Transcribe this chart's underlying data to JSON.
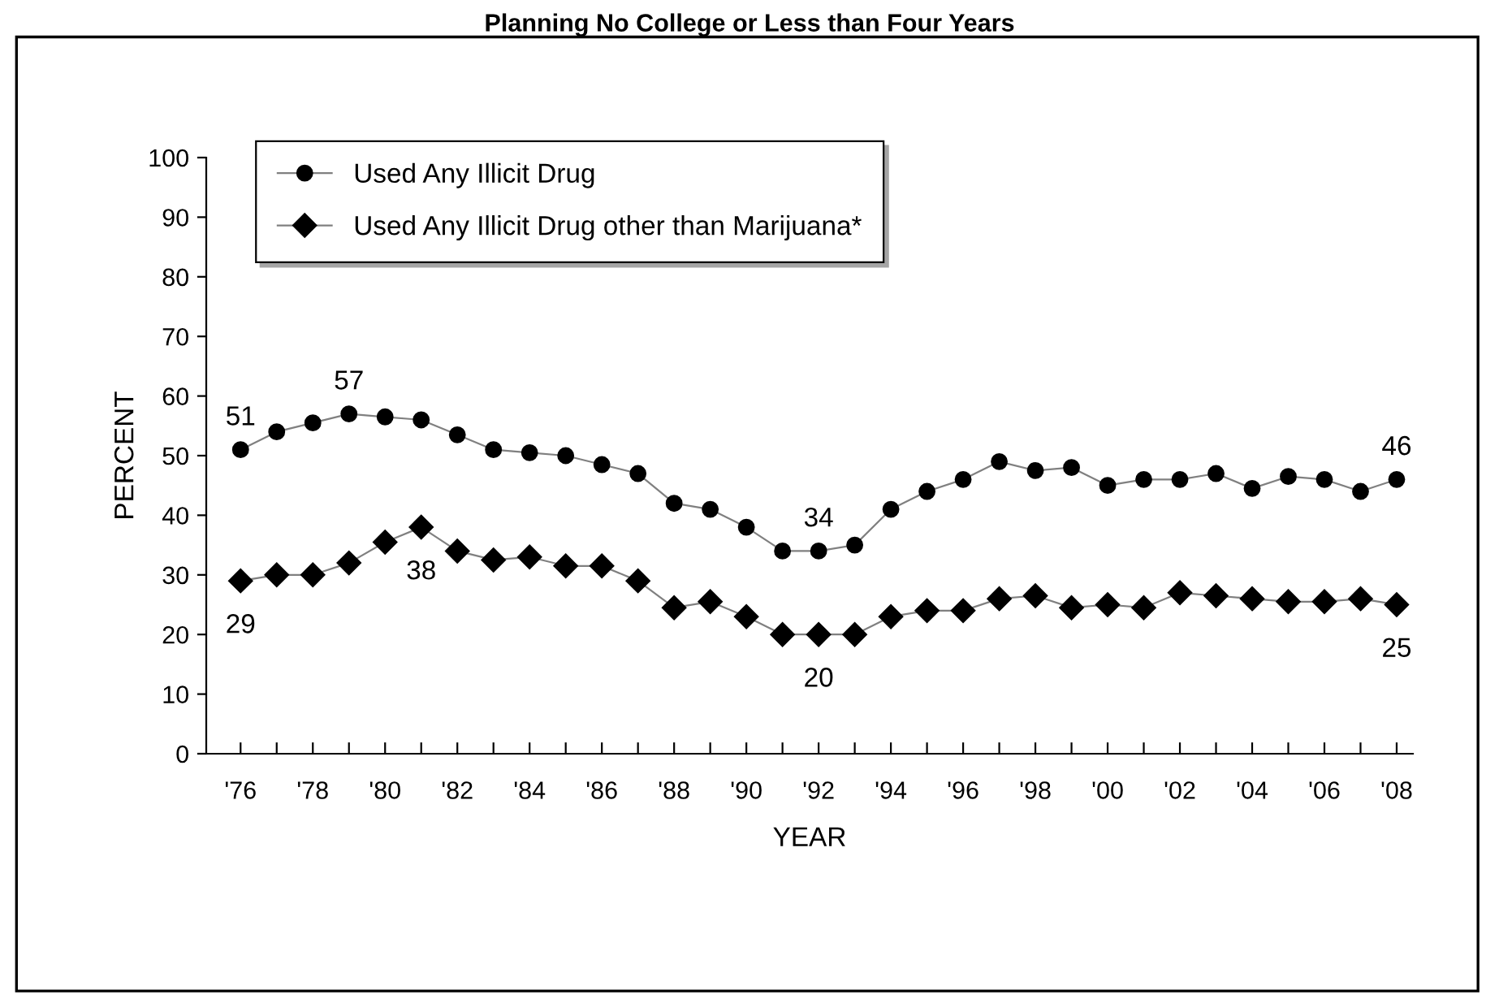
{
  "chart_data": {
    "type": "line",
    "title": "Planning No College or Less than Four Years",
    "xlabel": "YEAR",
    "ylabel": "PERCENT",
    "x": [
      1976,
      1977,
      1978,
      1979,
      1980,
      1981,
      1982,
      1983,
      1984,
      1985,
      1986,
      1987,
      1988,
      1989,
      1990,
      1991,
      1992,
      1993,
      1994,
      1995,
      1996,
      1997,
      1998,
      1999,
      2000,
      2001,
      2002,
      2003,
      2004,
      2005,
      2006,
      2007,
      2008
    ],
    "series": [
      {
        "name": "Used Any Illicit Drug",
        "color": "#000000",
        "marker": "circle",
        "values": [
          51,
          54,
          55.5,
          57,
          56.5,
          56,
          53.5,
          51,
          50.5,
          50,
          48.5,
          47,
          42,
          41,
          38,
          34,
          34,
          35,
          41,
          44,
          46,
          49,
          47.5,
          48,
          45,
          46,
          46,
          47,
          44.5,
          46.5,
          46,
          44,
          46
        ]
      },
      {
        "name": "Used Any Illicit Drug other than Marijuana*",
        "color": "#000000",
        "marker": "diamond",
        "values": [
          29,
          30,
          30,
          32,
          35.5,
          38,
          34,
          32.5,
          33,
          31.5,
          31.5,
          29,
          24.5,
          25.5,
          23,
          20,
          20,
          20,
          23,
          24,
          24,
          26,
          26.5,
          24.5,
          25,
          24.5,
          27,
          26.5,
          26,
          25.5,
          25.5,
          26,
          25
        ]
      }
    ],
    "annotations": [
      {
        "text": "51",
        "x": 1976,
        "y": 51
      },
      {
        "text": "57",
        "x": 1979,
        "y": 57
      },
      {
        "text": "34",
        "x": 1992,
        "y": 34
      },
      {
        "text": "46",
        "x": 2008,
        "y": 46
      },
      {
        "text": "29",
        "x": 1976,
        "y": 29
      },
      {
        "text": "38",
        "x": 1981,
        "y": 38
      },
      {
        "text": "20",
        "x": 1992,
        "y": 20
      },
      {
        "text": "25",
        "x": 2008,
        "y": 25
      }
    ],
    "xlim": [
      1975.05,
      2008.45
    ],
    "xticks": [
      {
        "value": 1976,
        "label": "'76"
      },
      {
        "value": 1977,
        "label": null
      },
      {
        "value": 1978,
        "label": "'78"
      },
      {
        "value": 1979,
        "label": null
      },
      {
        "value": 1980,
        "label": "'80"
      },
      {
        "value": 1981,
        "label": null
      },
      {
        "value": 1982,
        "label": "'82"
      },
      {
        "value": 1983,
        "label": null
      },
      {
        "value": 1984,
        "label": "'84"
      },
      {
        "value": 1985,
        "label": null
      },
      {
        "value": 1986,
        "label": "'86"
      },
      {
        "value": 1987,
        "label": null
      },
      {
        "value": 1988,
        "label": "'88"
      },
      {
        "value": 1989,
        "label": null
      },
      {
        "value": 1990,
        "label": "'90"
      },
      {
        "value": 1991,
        "label": null
      },
      {
        "value": 1992,
        "label": "'92"
      },
      {
        "value": 1993,
        "label": null
      },
      {
        "value": 1994,
        "label": "'94"
      },
      {
        "value": 1995,
        "label": null
      },
      {
        "value": 1996,
        "label": "'96"
      },
      {
        "value": 1997,
        "label": null
      },
      {
        "value": 1998,
        "label": "'98"
      },
      {
        "value": 1999,
        "label": null
      },
      {
        "value": 2000,
        "label": "'00"
      },
      {
        "value": 2001,
        "label": null
      },
      {
        "value": 2002,
        "label": "'02"
      },
      {
        "value": 2003,
        "label": null
      },
      {
        "value": 2004,
        "label": "'04"
      },
      {
        "value": 2005,
        "label": null
      },
      {
        "value": 2006,
        "label": "'06"
      },
      {
        "value": 2007,
        "label": null
      },
      {
        "value": 2008,
        "label": "'08"
      }
    ],
    "ylim": [
      0,
      100
    ],
    "yticks": [
      0,
      10,
      20,
      30,
      40,
      50,
      60,
      70,
      80,
      90,
      100
    ],
    "grid": false,
    "legend": "top left",
    "line_style": "solid"
  }
}
